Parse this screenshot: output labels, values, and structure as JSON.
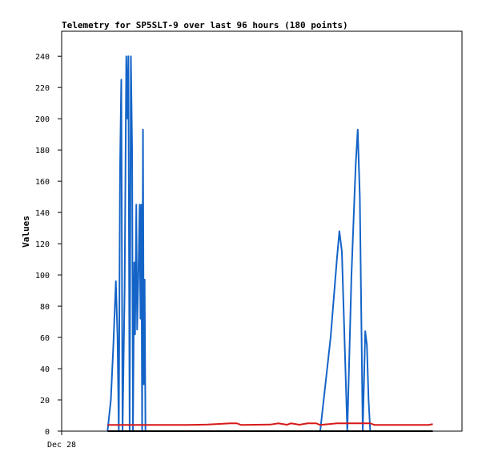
{
  "chart_data": {
    "type": "line",
    "title": "Telemetry for SP5SLT-9 over last 96 hours (180 points)",
    "ylabel": "Values",
    "xlabel": "",
    "x_tick_labels": [
      "Dec 28"
    ],
    "y_ticks": [
      0,
      20,
      40,
      60,
      80,
      100,
      120,
      140,
      160,
      180,
      200,
      220,
      240
    ],
    "ylim": [
      0,
      256
    ],
    "xlim": [
      0,
      96
    ],
    "grid": false,
    "legend": "none",
    "series": [
      {
        "color": "#1464c8",
        "points": [
          [
            11.0,
            0
          ],
          [
            11.8,
            20
          ],
          [
            12.4,
            55
          ],
          [
            13.0,
            96
          ],
          [
            13.4,
            60
          ],
          [
            13.7,
            0
          ],
          [
            14.0,
            168
          ],
          [
            14.3,
            225
          ],
          [
            14.6,
            0
          ],
          [
            15.1,
            90
          ],
          [
            15.5,
            240
          ],
          [
            15.8,
            200
          ],
          [
            16.0,
            240
          ],
          [
            16.3,
            0
          ],
          [
            16.6,
            240
          ],
          [
            16.9,
            180
          ],
          [
            17.1,
            0
          ],
          [
            17.4,
            108
          ],
          [
            17.6,
            62
          ],
          [
            17.9,
            145
          ],
          [
            18.1,
            65
          ],
          [
            18.4,
            100
          ],
          [
            18.7,
            145
          ],
          [
            18.9,
            72
          ],
          [
            19.1,
            145
          ],
          [
            19.3,
            0
          ],
          [
            19.5,
            193
          ],
          [
            19.7,
            30
          ],
          [
            19.9,
            97
          ],
          [
            20.1,
            0
          ],
          [
            62.0,
            0
          ],
          [
            64.5,
            60
          ],
          [
            66.0,
            110
          ],
          [
            66.6,
            128
          ],
          [
            67.2,
            115
          ],
          [
            68.5,
            0
          ],
          [
            69.5,
            100
          ],
          [
            70.5,
            170
          ],
          [
            71.0,
            193
          ],
          [
            71.5,
            150
          ],
          [
            72.2,
            0
          ],
          [
            72.8,
            64
          ],
          [
            73.2,
            55
          ],
          [
            73.6,
            20
          ],
          [
            74.0,
            0
          ]
        ]
      },
      {
        "color": "#d81818",
        "points": [
          [
            11.0,
            4
          ],
          [
            30.0,
            4
          ],
          [
            35.0,
            4.2
          ],
          [
            40.5,
            5
          ],
          [
            42.0,
            5
          ],
          [
            43.0,
            4
          ],
          [
            50.0,
            4.2
          ],
          [
            52.0,
            5
          ],
          [
            54.0,
            4.1
          ],
          [
            55.0,
            5
          ],
          [
            57.0,
            4.1
          ],
          [
            59.0,
            5
          ],
          [
            61.0,
            5
          ],
          [
            62.0,
            4
          ],
          [
            64.0,
            4.5
          ],
          [
            66.0,
            5
          ],
          [
            70.0,
            5
          ],
          [
            74.0,
            5
          ],
          [
            75.0,
            4
          ],
          [
            84.0,
            4
          ],
          [
            88.0,
            4
          ],
          [
            89.0,
            4.5
          ]
        ]
      },
      {
        "color": "#000000",
        "points": [
          [
            11.0,
            0
          ],
          [
            89.0,
            0
          ]
        ]
      }
    ]
  }
}
